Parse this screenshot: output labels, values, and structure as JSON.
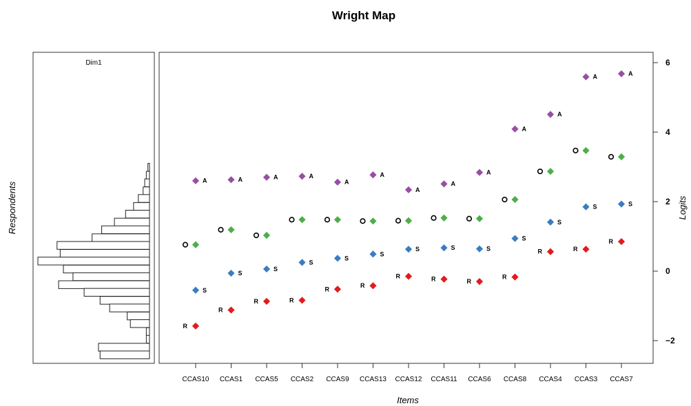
{
  "chart_data": {
    "type": "scatter",
    "title": "Wright Map",
    "panel_label": "Dim1",
    "xlabel": "Items",
    "ylabel": "Logits",
    "left_ylabel": "Respondents",
    "ylim": [
      -2.6,
      6.3
    ],
    "yticks": [
      -2,
      0,
      2,
      4,
      6
    ],
    "ytick_labels": [
      "−2",
      "0",
      "2",
      "4",
      "6"
    ],
    "categories": [
      "CCAS10",
      "CCAS1",
      "CCAS5",
      "CCAS2",
      "CCAS9",
      "CCAS13",
      "CCAS12",
      "CCAS11",
      "CCAS6",
      "CCAS8",
      "CCAS4",
      "CCAS3",
      "CCAS7"
    ],
    "colors": {
      "R": "#e41a1c",
      "S": "#3a7dbf",
      "O": "#4dae4a",
      "A": "#984ea3",
      "frame": "#333333"
    },
    "series": [
      {
        "key": "R",
        "label": "R",
        "label_side": "left",
        "color": "#e41a1c",
        "values": [
          -1.58,
          -1.12,
          -0.87,
          -0.84,
          -0.52,
          -0.42,
          -0.15,
          -0.23,
          -0.3,
          -0.17,
          0.56,
          0.63,
          0.85
        ]
      },
      {
        "key": "S",
        "label": "S",
        "label_side": "right",
        "color": "#3a7dbf",
        "values": [
          -0.55,
          -0.06,
          0.06,
          0.25,
          0.37,
          0.49,
          0.63,
          0.67,
          0.64,
          0.94,
          1.41,
          1.85,
          1.93
        ]
      },
      {
        "key": "O",
        "label": "O",
        "label_side": "left",
        "color": "#4dae4a",
        "values": [
          0.76,
          1.19,
          1.03,
          1.48,
          1.48,
          1.44,
          1.45,
          1.53,
          1.51,
          2.06,
          2.87,
          3.47,
          3.29
        ]
      },
      {
        "key": "A",
        "label": "A",
        "label_side": "right",
        "color": "#984ea3",
        "values": [
          2.6,
          2.63,
          2.7,
          2.73,
          2.56,
          2.77,
          2.34,
          2.51,
          2.84,
          4.09,
          4.51,
          5.59,
          5.68
        ]
      }
    ],
    "respondent_histogram": {
      "bin_width": 0.225,
      "bins": [
        {
          "y": 2.99,
          "freq": 1
        },
        {
          "y": 2.76,
          "freq": 2
        },
        {
          "y": 2.54,
          "freq": 3
        },
        {
          "y": 2.31,
          "freq": 4
        },
        {
          "y": 2.09,
          "freq": 7
        },
        {
          "y": 1.86,
          "freq": 10
        },
        {
          "y": 1.64,
          "freq": 15
        },
        {
          "y": 1.41,
          "freq": 22
        },
        {
          "y": 1.19,
          "freq": 30
        },
        {
          "y": 0.96,
          "freq": 36
        },
        {
          "y": 0.74,
          "freq": 58
        },
        {
          "y": 0.51,
          "freq": 56
        },
        {
          "y": 0.29,
          "freq": 70
        },
        {
          "y": 0.06,
          "freq": 54
        },
        {
          "y": -0.16,
          "freq": 48
        },
        {
          "y": -0.39,
          "freq": 57
        },
        {
          "y": -0.61,
          "freq": 41
        },
        {
          "y": -0.84,
          "freq": 31
        },
        {
          "y": -1.06,
          "freq": 25
        },
        {
          "y": -1.29,
          "freq": 14
        },
        {
          "y": -1.51,
          "freq": 12
        },
        {
          "y": -1.74,
          "freq": 2
        },
        {
          "y": -1.96,
          "freq": 2
        },
        {
          "y": -2.19,
          "freq": 32
        },
        {
          "y": -2.41,
          "freq": 31
        }
      ],
      "max_freq": 70
    },
    "grid": false
  }
}
